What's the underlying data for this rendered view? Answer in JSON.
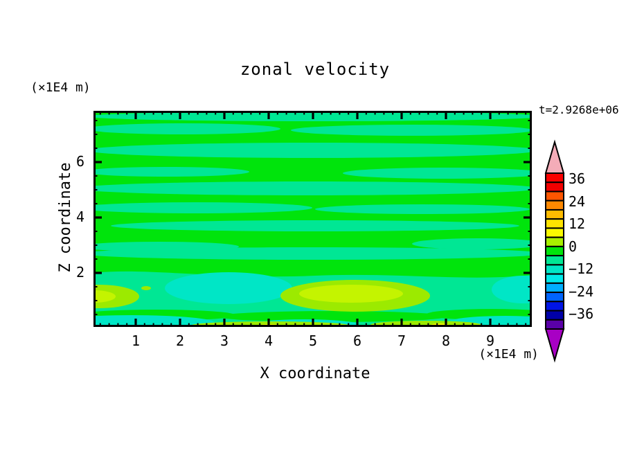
{
  "title": "zonal velocity",
  "annotations": {
    "time_label": "t=2.9268e+06"
  },
  "axes": {
    "x": {
      "title": "X coordinate",
      "unit_label": "(×1E4 m)",
      "ticks": [
        "1",
        "2",
        "3",
        "4",
        "5",
        "6",
        "7",
        "8",
        "9"
      ]
    },
    "y": {
      "title": "Z coordinate",
      "unit_label": "(×1E4 m)",
      "ticks": [
        "2",
        "4",
        "6"
      ]
    }
  },
  "colorbar": {
    "labels": [
      "36",
      "24",
      "12",
      "0",
      "−12",
      "−24",
      "−36"
    ],
    "band_colors": [
      "#FB0000",
      "#F20000",
      "#FF5500",
      "#FF8800",
      "#FFBB00",
      "#FFE300",
      "#FAFA00",
      "#A8F000",
      "#00E40C",
      "#00E794",
      "#00E6C6",
      "#00E9E9",
      "#00AEFF",
      "#0064FF",
      "#0014E6",
      "#0000A8",
      "#5A00A8"
    ],
    "over_color": "#F4ACB8",
    "under_color": "#A800C4"
  },
  "field_colors": {
    "green": "#00E40C",
    "spring": "#00E794",
    "turquoise": "#00E6C6",
    "chartreuse": "#9CEA00",
    "chartreuse2": "#C4F400",
    "yellow": "#F2F200"
  },
  "chart_data": {
    "type": "heatmap",
    "title": "zonal velocity",
    "xlabel": "X coordinate (×1E4 m)",
    "ylabel": "Z coordinate (×1E4 m)",
    "xlim": [
      0,
      9.9
    ],
    "ylim": [
      0,
      7.8
    ],
    "x_ticks": [
      1,
      2,
      3,
      4,
      5,
      6,
      7,
      8,
      9
    ],
    "x_minor_tick_interval": 0.2,
    "y_ticks": [
      2,
      4,
      6
    ],
    "y_minor_tick_interval": 0.5,
    "grid": false,
    "time_annotation": "t=2.9268e+06",
    "colorbar_labeled_levels": [
      36,
      24,
      12,
      0,
      -12,
      -24,
      -36
    ],
    "colorbar_band_colors_top_to_bottom": [
      "#FB0000",
      "#F20000",
      "#FF5500",
      "#FF8800",
      "#FFBB00",
      "#FFE300",
      "#FAFA00",
      "#A8F000",
      "#00E40C",
      "#00E794",
      "#00E6C6",
      "#00E9E9",
      "#00AEFF",
      "#0064FF",
      "#0014E6",
      "#0000A8",
      "#5A00A8"
    ],
    "colorbar_over_color": "#F4ACB8",
    "colorbar_under_color": "#A800C4",
    "field_summary": [
      {
        "region": "interior z ≈ 2–7.8, all x",
        "value": "near 0; green background with thin wavy spring-green streaks (≈ −6 to 0)"
      },
      {
        "region": "z ≈ 0.8–1.5, x ≈ 1.7–4",
        "value": "turquoise minimum patch (≈ −12)"
      },
      {
        "region": "z ≈ 0.8–1.5, x ≈ 4.3–6.3",
        "value": "chartreuse maximum blob (≈ +6) with brighter core"
      },
      {
        "region": "left edge x ≈ 0–0.9, z ≈ 1–1.6",
        "value": "chartreuse patch with bright yellow-green core (≈ +6 to +12)"
      },
      {
        "region": "right edge x ≈ 9.4–9.9, z ≈ 0.8–1.4",
        "value": "turquoise patch (≈ −12)"
      },
      {
        "region": "bottom boundary z < 0.3",
        "value": "thin alternating strips: turquoise/cyan, chartreuse and small yellow spots"
      }
    ]
  }
}
